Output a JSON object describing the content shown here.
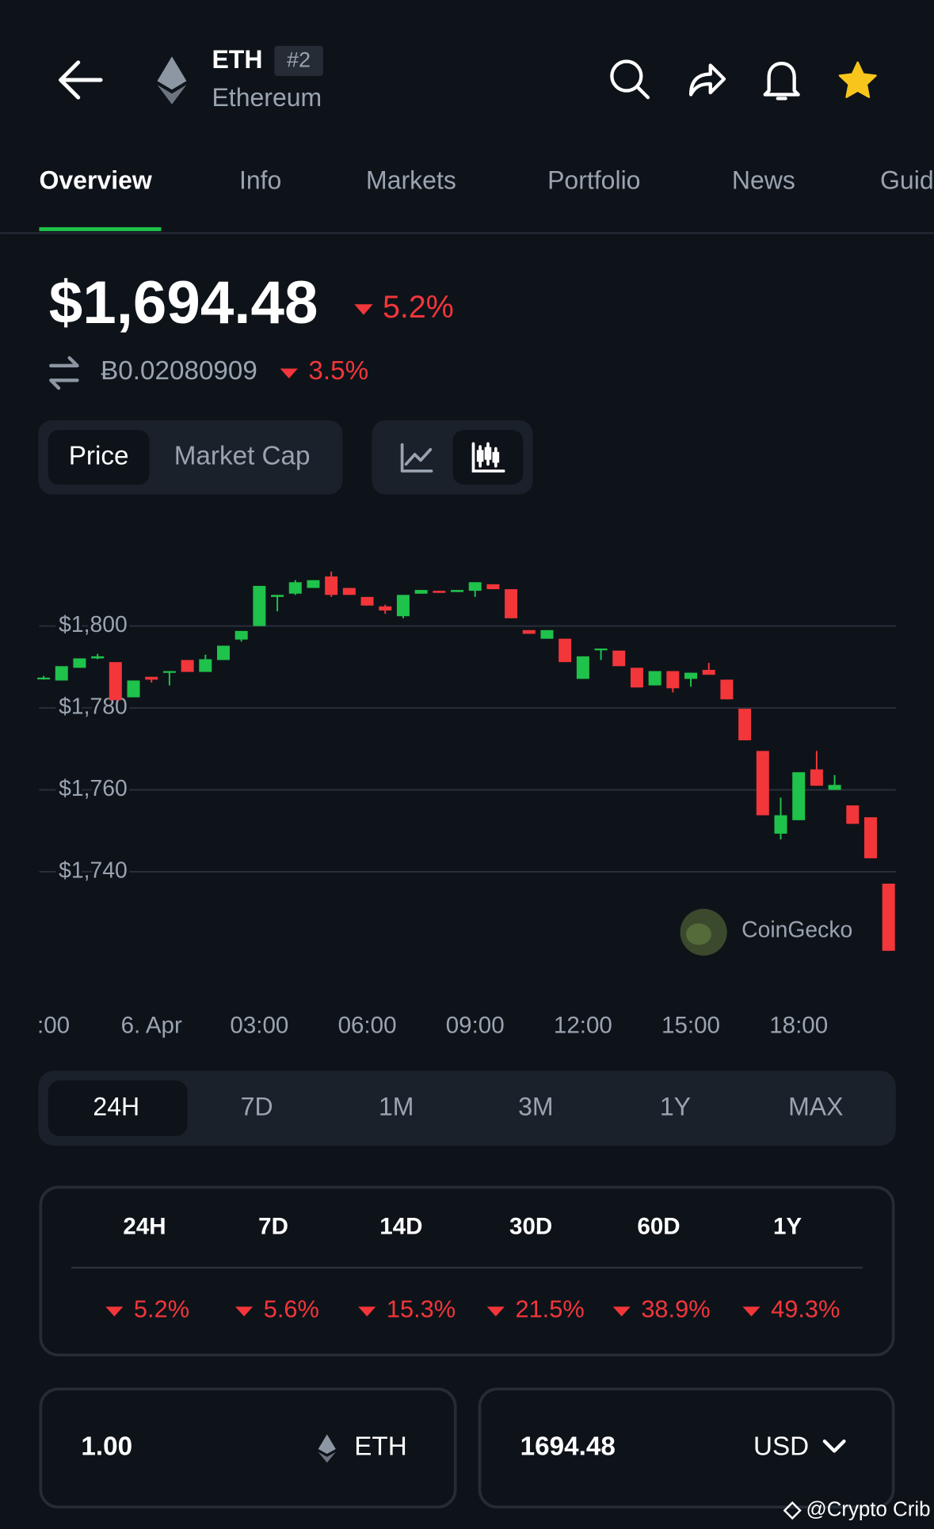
{
  "header": {
    "symbol": "ETH",
    "rank": "#2",
    "name": "Ethereum"
  },
  "tabs": [
    "Overview",
    "Info",
    "Markets",
    "Portfolio",
    "News",
    "Guid"
  ],
  "price": {
    "usd": "$1,694.48",
    "usd_change": "5.2%",
    "btc": "Ƀ0.02080909",
    "btc_change": "3.5%"
  },
  "chart_toggle": [
    "Price",
    "Market Cap"
  ],
  "chart_data": {
    "type": "candlestick",
    "x": [
      -3,
      -2.5,
      -2,
      -1.5,
      -1,
      -0.5,
      0,
      0.5,
      1,
      1.5,
      2,
      2.5,
      3,
      3.5,
      4,
      4.5,
      5,
      5.5,
      6,
      6.5,
      7,
      7.5,
      8,
      8.5,
      9,
      9.5,
      10,
      10.5,
      11,
      11.5,
      12,
      12.5,
      13,
      13.5,
      14,
      14.5,
      15,
      15.5,
      16,
      16.5,
      17,
      17.5,
      18,
      18.5,
      19,
      19.5,
      20,
      20.5
    ],
    "open": [
      1787.1,
      1786.7,
      1789.8,
      1792.1,
      1791.2,
      1782.6,
      1787.6,
      1788.8,
      1791.7,
      1788.8,
      1791.7,
      1796.7,
      1800.0,
      1807.1,
      1807.9,
      1809.3,
      1812.1,
      1809.3,
      1807.1,
      1804.8,
      1802.4,
      1807.9,
      1808.6,
      1808.3,
      1808.6,
      1810.2,
      1809.0,
      1799.0,
      1796.9,
      1796.9,
      1787.1,
      1794.3,
      1794.0,
      1789.8,
      1785.5,
      1789.0,
      1787.1,
      1789.3,
      1786.9,
      1779.8,
      1769.5,
      1749.3,
      1752.6,
      1765.0,
      1760.0,
      1756.2,
      1753.3,
      1737.1
    ],
    "high": [
      1787.8,
      1790.2,
      1792.1,
      1793.2,
      1791.2,
      1786.7,
      1787.6,
      1789.0,
      1791.7,
      1793.0,
      1795.2,
      1798.8,
      1809.8,
      1807.6,
      1811.2,
      1811.2,
      1813.3,
      1809.3,
      1807.1,
      1805.2,
      1807.6,
      1808.8,
      1808.6,
      1808.8,
      1810.7,
      1810.2,
      1809.0,
      1799.0,
      1799.0,
      1796.9,
      1792.6,
      1794.5,
      1794.0,
      1789.8,
      1789.0,
      1789.0,
      1788.6,
      1791.0,
      1786.9,
      1779.8,
      1769.5,
      1758.1,
      1764.3,
      1769.5,
      1763.6,
      1756.2,
      1753.3,
      1737.1
    ],
    "low": [
      1786.9,
      1786.7,
      1789.8,
      1791.9,
      1781.9,
      1782.6,
      1786.2,
      1785.5,
      1788.8,
      1788.8,
      1791.7,
      1796.2,
      1800.0,
      1803.6,
      1807.6,
      1809.3,
      1807.1,
      1807.6,
      1805.0,
      1803.0,
      1801.9,
      1807.9,
      1808.1,
      1808.3,
      1807.1,
      1809.0,
      1801.9,
      1798.1,
      1796.9,
      1791.2,
      1787.1,
      1791.7,
      1790.2,
      1785.0,
      1785.5,
      1783.8,
      1785.2,
      1788.1,
      1782.1,
      1772.1,
      1753.8,
      1747.9,
      1752.6,
      1761.0,
      1760.0,
      1751.7,
      1743.3,
      1720.7
    ],
    "close": [
      1787.4,
      1790.2,
      1792.1,
      1792.6,
      1781.9,
      1786.7,
      1786.9,
      1789.0,
      1788.8,
      1791.9,
      1795.2,
      1798.8,
      1809.8,
      1807.6,
      1810.7,
      1811.2,
      1807.6,
      1807.6,
      1805.0,
      1803.8,
      1807.6,
      1808.8,
      1808.1,
      1808.8,
      1810.7,
      1809.0,
      1801.9,
      1798.1,
      1799.0,
      1791.2,
      1792.6,
      1794.5,
      1790.2,
      1785.0,
      1789.0,
      1784.8,
      1788.6,
      1788.1,
      1782.1,
      1772.1,
      1753.8,
      1753.8,
      1764.3,
      1761.0,
      1761.2,
      1751.7,
      1743.3,
      1720.7
    ],
    "up_color": "#1fc24a",
    "down_color": "#f2363a",
    "xlim": [
      -3.15,
      20.7
    ],
    "xticks": [
      {
        "value": -3,
        "label": ":00"
      },
      {
        "value": 0,
        "label": "6. Apr"
      },
      {
        "value": 3,
        "label": "03:00"
      },
      {
        "value": 6,
        "label": "06:00"
      },
      {
        "value": 9,
        "label": "09:00"
      },
      {
        "value": 12,
        "label": "12:00"
      },
      {
        "value": 15,
        "label": "15:00"
      },
      {
        "value": 18,
        "label": "18:00"
      }
    ],
    "ylim": [
      1715,
      1820
    ],
    "yticks": [
      {
        "value": 1740,
        "label": "$1,740"
      },
      {
        "value": 1760,
        "label": "$1,760"
      },
      {
        "value": 1780,
        "label": "$1,780"
      },
      {
        "value": 1800,
        "label": "$1,800"
      }
    ],
    "grid": true,
    "source": "CoinGecko"
  },
  "ranges": [
    "24H",
    "7D",
    "1M",
    "3M",
    "1Y",
    "MAX"
  ],
  "performance": {
    "periods": [
      "24H",
      "7D",
      "14D",
      "30D",
      "60D",
      "1Y"
    ],
    "changes": [
      "5.2%",
      "5.6%",
      "15.3%",
      "21.5%",
      "38.9%",
      "49.3%"
    ]
  },
  "converter": {
    "amount": "1.00",
    "from": "ETH",
    "result": "1694.48",
    "to": "USD"
  },
  "watermark": "@Crypto Crib"
}
